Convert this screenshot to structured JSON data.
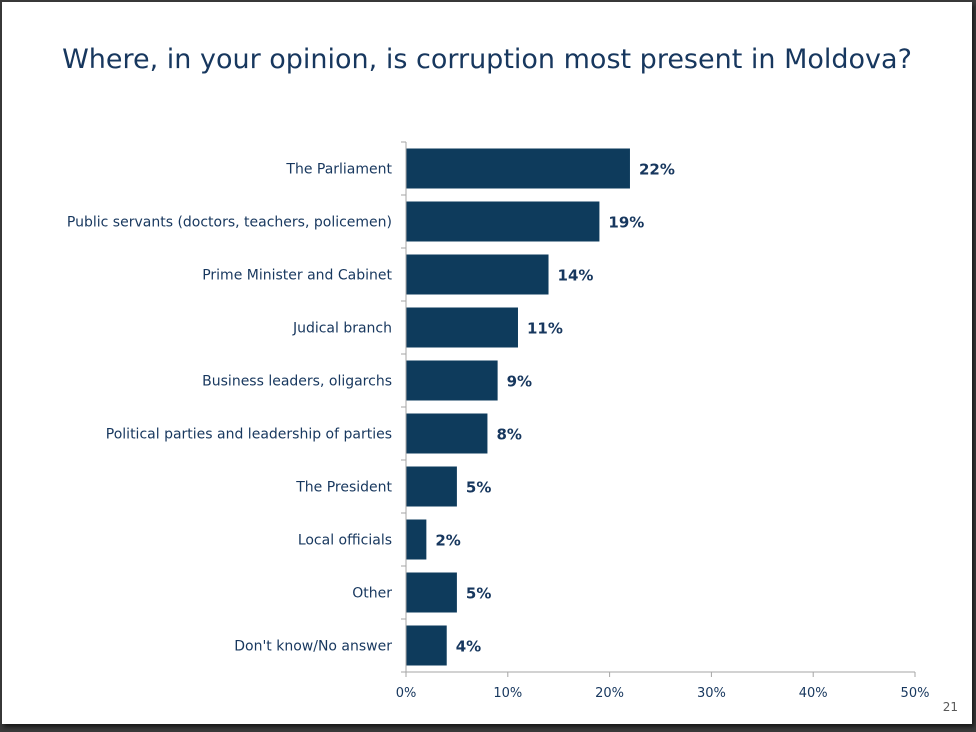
{
  "slide": {
    "title": "Where, in your opinion, is corruption most present in Moldova?",
    "page_number": "21"
  },
  "colors": {
    "bar": "#0e3b5c",
    "text": "#17375e",
    "axis": "#a6a6a6"
  },
  "chart_data": {
    "type": "bar",
    "orientation": "horizontal",
    "title": "Where, in your opinion, is corruption most present in Moldova?",
    "categories": [
      "The Parliament",
      "Public servants (doctors, teachers, policemen)",
      "Prime Minister and Cabinet",
      "Judical branch",
      "Business leaders, oligarchs",
      "Political parties and leadership of parties",
      "The President",
      "Local officials",
      "Other",
      "Don't know/No answer"
    ],
    "values": [
      22,
      19,
      14,
      11,
      9,
      8,
      5,
      2,
      5,
      4
    ],
    "value_labels": [
      "22%",
      "19%",
      "14%",
      "11%",
      "9%",
      "8%",
      "5%",
      "2%",
      "5%",
      "4%"
    ],
    "xlim": [
      0,
      50
    ],
    "x_ticks": [
      0,
      10,
      20,
      30,
      40,
      50
    ],
    "x_tick_labels": [
      "0%",
      "10%",
      "20%",
      "30%",
      "40%",
      "50%"
    ],
    "xlabel": "",
    "ylabel": "",
    "grid": false,
    "legend": "none"
  }
}
